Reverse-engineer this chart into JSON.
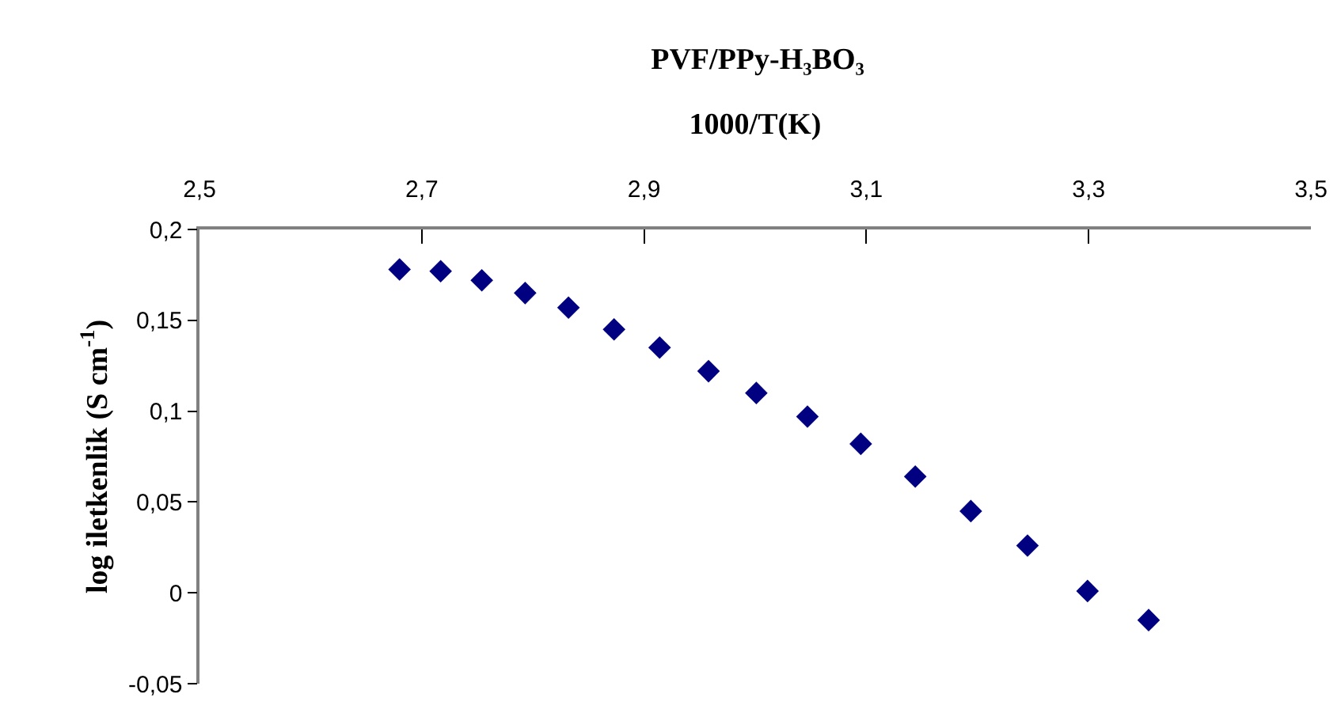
{
  "chart_data": {
    "type": "scatter",
    "title": "PVF/PPy-H₃BO₃",
    "xlabel": "1000/T(K)",
    "ylabel": "log iletkenlik (S cm$^{-1}$)",
    "x": [
      2.68,
      2.717,
      2.754,
      2.793,
      2.832,
      2.873,
      2.914,
      2.958,
      3.001,
      3.047,
      3.095,
      3.144,
      3.194,
      3.245,
      3.299,
      3.354
    ],
    "series": [
      {
        "color": "#000080",
        "values": [
          0.178,
          0.177,
          0.172,
          0.165,
          0.157,
          0.145,
          0.135,
          0.122,
          0.11,
          0.097,
          0.082,
          0.064,
          0.045,
          0.026,
          0.001,
          -0.015
        ]
      }
    ],
    "xlim": [
      2.5,
      3.5
    ],
    "xticks": [
      {
        "value": 2.5,
        "label": "2,5"
      },
      {
        "value": 2.7,
        "label": "2,7"
      },
      {
        "value": 2.9,
        "label": "2,9"
      },
      {
        "value": 3.1,
        "label": "3,1"
      },
      {
        "value": 3.3,
        "label": "3,3"
      },
      {
        "value": 3.5,
        "label": "3,5"
      }
    ],
    "ylim": [
      -0.05,
      0.2
    ],
    "yticks": [
      {
        "value": -0.05,
        "label": "-0,05"
      },
      {
        "value": 0,
        "label": "0"
      },
      {
        "value": 0.05,
        "label": "0,05"
      },
      {
        "value": 0.1,
        "label": "0,1"
      },
      {
        "value": 0.15,
        "label": "0,15"
      },
      {
        "value": 0.2,
        "label": "0,2"
      }
    ],
    "grid": false,
    "marker": "diamond"
  }
}
